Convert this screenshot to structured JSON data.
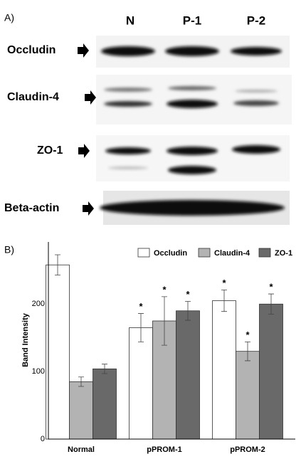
{
  "panel_a": {
    "label": "A)",
    "lanes": [
      "N",
      "P-1",
      "P-2"
    ],
    "rows": [
      "Occludin",
      "Claudin-4",
      "ZO-1",
      "Beta-actin"
    ]
  },
  "chart_data": {
    "type": "bar",
    "panel_label": "B)",
    "ylabel": "Band Intensity",
    "categories": [
      "Normal",
      "pPROM-1",
      "pPROM-2"
    ],
    "series": [
      {
        "name": "Occludin",
        "color": "#ffffff",
        "values": [
          258,
          165,
          205
        ],
        "errors": [
          15,
          21,
          16
        ],
        "marks": [
          null,
          "*",
          "*"
        ]
      },
      {
        "name": "Claudin-4",
        "color": "#b3b3b3",
        "values": [
          85,
          175,
          130
        ],
        "errors": [
          7,
          36,
          14
        ],
        "marks": [
          null,
          "*",
          "*"
        ]
      },
      {
        "name": "ZO-1",
        "color": "#696969",
        "values": [
          104,
          190,
          200
        ],
        "errors": [
          7,
          14,
          15
        ],
        "marks": [
          null,
          "*",
          "*"
        ]
      }
    ],
    "ylim": [
      0,
      292
    ],
    "yticks": [
      0,
      100,
      200
    ]
  }
}
